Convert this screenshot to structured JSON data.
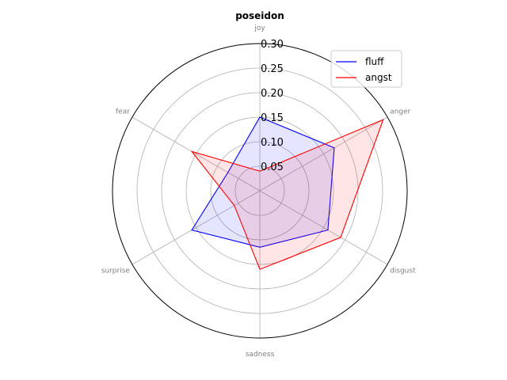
{
  "chart_data": {
    "type": "radar",
    "title": "poseidon",
    "categories": [
      "joy",
      "anger",
      "disgust",
      "sadness",
      "surprise",
      "fear"
    ],
    "rlim": [
      0,
      0.3
    ],
    "rticks": [
      0.05,
      0.1,
      0.15,
      0.2,
      0.25,
      0.3
    ],
    "rtick_labels": [
      "0.05",
      "0.10",
      "0.15",
      "0.20",
      "0.25",
      "0.30"
    ],
    "grid": true,
    "legend_position": "top-right",
    "series": [
      {
        "name": "fluff",
        "values": [
          0.15,
          0.175,
          0.16,
          0.115,
          0.16,
          0.075
        ],
        "color": "#0000ff",
        "fill": "#0000ff"
      },
      {
        "name": "angst",
        "values": [
          0.04,
          0.29,
          0.19,
          0.16,
          0.06,
          0.16
        ],
        "color": "#ff0000",
        "fill": "#ff0000"
      }
    ]
  }
}
